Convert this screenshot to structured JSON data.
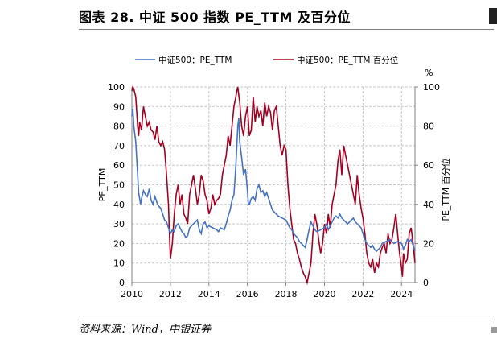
{
  "figure": {
    "title": "图表 28. 中证 500 指数 PE_TTM 及百分位",
    "source": "资料来源：Wind，中银证券"
  },
  "chart_data": {
    "type": "line",
    "title": "图表 28. 中证 500 指数 PE_TTM 及百分位",
    "xlabel": "",
    "ylabel": "PE_TTM",
    "y2label": "PE_TTM 百分位",
    "y2unit": "%",
    "xlim": [
      2010,
      2024.7
    ],
    "ylim": [
      0,
      100
    ],
    "y2lim": [
      0,
      100
    ],
    "x_ticks": [
      "2010",
      "2012",
      "2014",
      "2016",
      "2018",
      "2020",
      "2022",
      "2024"
    ],
    "y_ticks": [
      "0",
      "10",
      "20",
      "30",
      "40",
      "50",
      "60",
      "70",
      "80",
      "90",
      "100"
    ],
    "y2_ticks": [
      "0",
      "20",
      "40",
      "60",
      "80",
      "100"
    ],
    "grid": true,
    "legend_position": "top",
    "colors": {
      "pe": "#4472c4",
      "pct": "#a50021",
      "grid": "#c8c8c8",
      "axis": "#7f7f7f"
    },
    "series": [
      {
        "name": "中证500：PE_TTM",
        "axis": "left",
        "x": [
          2010.0,
          2010.05,
          2010.1,
          2010.2,
          2010.3,
          2010.35,
          2010.45,
          2010.5,
          2010.6,
          2010.7,
          2010.8,
          2010.9,
          2011.0,
          2011.1,
          2011.2,
          2011.3,
          2011.4,
          2011.5,
          2011.6,
          2011.7,
          2011.8,
          2011.9,
          2012.0,
          2012.1,
          2012.2,
          2012.3,
          2012.4,
          2012.5,
          2012.6,
          2012.7,
          2012.8,
          2012.9,
          2013.0,
          2013.2,
          2013.4,
          2013.5,
          2013.6,
          2013.7,
          2013.8,
          2013.9,
          2014.0,
          2014.2,
          2014.4,
          2014.5,
          2014.6,
          2014.8,
          2014.9,
          2015.0,
          2015.1,
          2015.2,
          2015.3,
          2015.35,
          2015.4,
          2015.45,
          2015.5,
          2015.55,
          2015.6,
          2015.7,
          2015.8,
          2015.9,
          2016.0,
          2016.05,
          2016.1,
          2016.2,
          2016.3,
          2016.4,
          2016.5,
          2016.6,
          2016.7,
          2016.8,
          2016.9,
          2017.0,
          2017.1,
          2017.2,
          2017.3,
          2017.4,
          2017.5,
          2017.6,
          2017.8,
          2018.0,
          2018.1,
          2018.2,
          2018.3,
          2018.4,
          2018.5,
          2018.6,
          2018.7,
          2018.8,
          2018.9,
          2019.0,
          2019.1,
          2019.2,
          2019.3,
          2019.4,
          2019.5,
          2019.6,
          2019.8,
          2020.0,
          2020.1,
          2020.2,
          2020.3,
          2020.4,
          2020.5,
          2020.6,
          2020.7,
          2020.8,
          2020.9,
          2021.0,
          2021.2,
          2021.4,
          2021.5,
          2021.6,
          2021.7,
          2021.8,
          2021.9,
          2022.0,
          2022.1,
          2022.2,
          2022.3,
          2022.4,
          2022.5,
          2022.6,
          2022.7,
          2022.8,
          2022.9,
          2023.0,
          2023.2,
          2023.4,
          2023.5,
          2023.6,
          2023.8,
          2024.0,
          2024.05,
          2024.1,
          2024.2,
          2024.3,
          2024.4,
          2024.5,
          2024.6,
          2024.7
        ],
        "values": [
          85,
          89,
          80,
          72,
          55,
          46,
          40,
          43,
          47,
          45,
          44,
          48,
          42,
          40,
          44,
          41,
          39,
          38,
          35,
          32,
          31,
          28,
          25,
          27,
          26,
          29,
          30,
          28,
          26,
          25,
          23,
          24,
          28,
          30,
          32,
          27,
          25,
          30,
          31,
          28,
          29,
          28,
          27,
          26,
          28,
          27,
          30,
          34,
          37,
          42,
          45,
          52,
          60,
          70,
          80,
          84,
          72,
          64,
          55,
          58,
          47,
          40,
          40,
          43,
          44,
          42,
          48,
          50,
          46,
          47,
          44,
          46,
          43,
          40,
          37,
          36,
          35,
          34,
          33,
          32,
          30,
          28,
          27,
          25,
          24,
          23,
          21,
          20,
          19,
          18,
          22,
          27,
          31,
          29,
          27,
          26,
          27,
          28,
          30,
          27,
          29,
          31,
          33,
          34,
          33,
          35,
          33,
          32,
          30,
          32,
          33,
          31,
          30,
          29,
          28,
          25,
          22,
          20,
          19,
          18,
          19,
          17,
          16,
          17,
          18,
          20,
          21,
          22,
          21,
          20,
          21,
          20,
          19,
          17,
          19,
          22,
          21,
          22,
          19,
          16
        ]
      },
      {
        "name": "中证500：PE_TTM 百分位",
        "axis": "right",
        "x": [
          2010.0,
          2010.05,
          2010.1,
          2010.2,
          2010.3,
          2010.35,
          2010.4,
          2010.5,
          2010.6,
          2010.7,
          2010.8,
          2010.9,
          2011.0,
          2011.1,
          2011.2,
          2011.3,
          2011.4,
          2011.5,
          2011.6,
          2011.7,
          2011.8,
          2011.9,
          2011.95,
          2012.0,
          2012.1,
          2012.2,
          2012.3,
          2012.4,
          2012.5,
          2012.6,
          2012.7,
          2012.8,
          2012.9,
          2013.0,
          2013.1,
          2013.2,
          2013.3,
          2013.4,
          2013.5,
          2013.6,
          2013.7,
          2013.8,
          2013.9,
          2014.0,
          2014.1,
          2014.2,
          2014.3,
          2014.4,
          2014.5,
          2014.6,
          2014.7,
          2014.8,
          2014.9,
          2015.0,
          2015.1,
          2015.2,
          2015.3,
          2015.4,
          2015.45,
          2015.5,
          2015.6,
          2015.7,
          2015.8,
          2015.9,
          2016.0,
          2016.1,
          2016.2,
          2016.3,
          2016.4,
          2016.5,
          2016.6,
          2016.7,
          2016.8,
          2016.9,
          2017.0,
          2017.1,
          2017.2,
          2017.3,
          2017.4,
          2017.5,
          2017.6,
          2017.7,
          2017.8,
          2017.9,
          2018.0,
          2018.1,
          2018.2,
          2018.3,
          2018.4,
          2018.5,
          2018.6,
          2018.7,
          2018.8,
          2018.9,
          2019.0,
          2019.1,
          2019.2,
          2019.3,
          2019.4,
          2019.5,
          2019.6,
          2019.7,
          2019.8,
          2019.9,
          2020.0,
          2020.1,
          2020.2,
          2020.3,
          2020.4,
          2020.5,
          2020.6,
          2020.7,
          2020.8,
          2020.9,
          2021.0,
          2021.1,
          2021.2,
          2021.3,
          2021.4,
          2021.5,
          2021.6,
          2021.7,
          2021.8,
          2021.9,
          2022.0,
          2022.1,
          2022.2,
          2022.3,
          2022.4,
          2022.5,
          2022.6,
          2022.7,
          2022.8,
          2022.9,
          2023.0,
          2023.1,
          2023.2,
          2023.3,
          2023.4,
          2023.5,
          2023.6,
          2023.7,
          2023.8,
          2023.9,
          2024.0,
          2024.05,
          2024.1,
          2024.2,
          2024.3,
          2024.4,
          2024.5,
          2024.6,
          2024.7
        ],
        "values": [
          98,
          100,
          99,
          95,
          80,
          75,
          82,
          78,
          90,
          85,
          80,
          82,
          78,
          77,
          73,
          80,
          72,
          70,
          72,
          68,
          55,
          40,
          25,
          12,
          20,
          35,
          45,
          50,
          40,
          45,
          35,
          33,
          30,
          45,
          50,
          55,
          48,
          40,
          45,
          55,
          52,
          45,
          42,
          35,
          38,
          45,
          40,
          42,
          43,
          45,
          55,
          60,
          65,
          75,
          70,
          80,
          90,
          95,
          98,
          100,
          92,
          80,
          75,
          85,
          90,
          75,
          78,
          95,
          82,
          90,
          85,
          88,
          80,
          92,
          85,
          90,
          87,
          78,
          88,
          90,
          80,
          70,
          65,
          70,
          68,
          50,
          38,
          30,
          22,
          20,
          15,
          12,
          8,
          5,
          3,
          0,
          5,
          10,
          25,
          35,
          30,
          22,
          15,
          20,
          30,
          25,
          35,
          28,
          40,
          45,
          50,
          62,
          68,
          55,
          70,
          65,
          60,
          55,
          50,
          45,
          40,
          55,
          45,
          38,
          33,
          25,
          15,
          10,
          8,
          12,
          5,
          10,
          8,
          15,
          18,
          20,
          15,
          25,
          20,
          22,
          28,
          35,
          25,
          15,
          8,
          3,
          15,
          10,
          12,
          25,
          28,
          20,
          10
        ]
      }
    ]
  }
}
